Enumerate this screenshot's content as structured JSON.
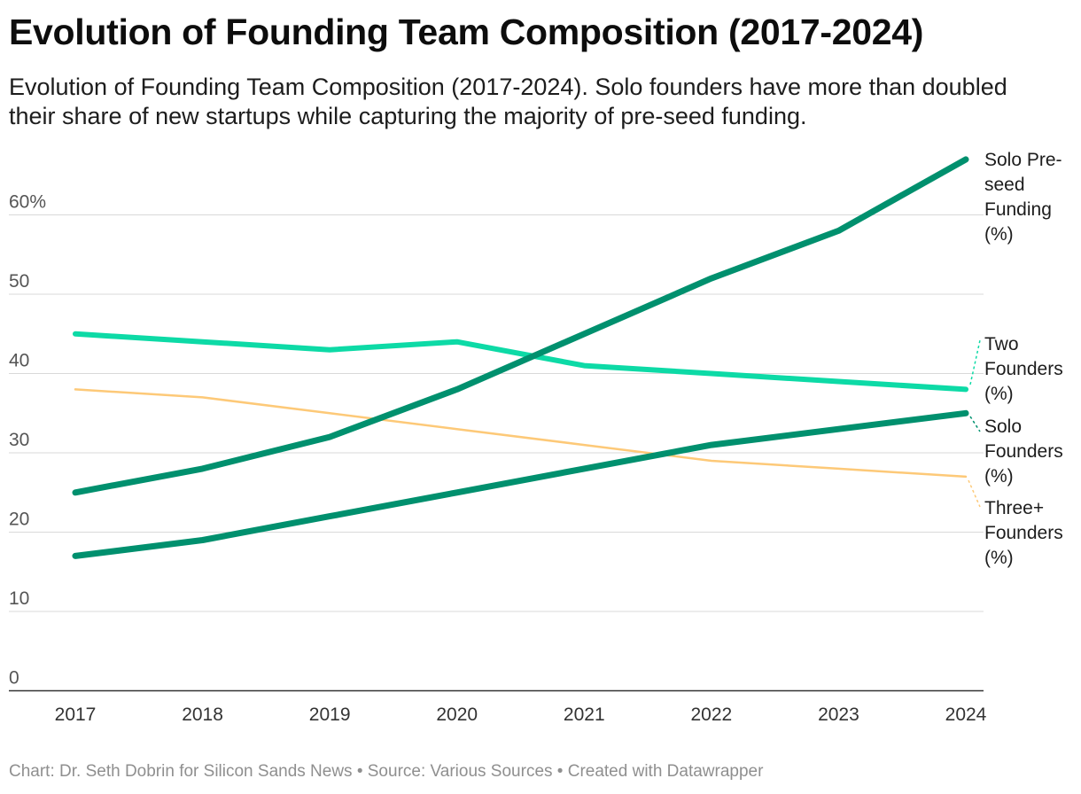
{
  "title": "Evolution of Founding Team Composition (2017-2024)",
  "subtitle": "Evolution of Founding Team Composition (2017-2024). Solo founders have more than doubled their share of new startups while capturing the majority of pre-seed funding.",
  "footer": "Chart: Dr. Seth Dobrin for Silicon Sands News • Source: Various Sources • Created with Datawrapper",
  "chart_data": {
    "type": "line",
    "x": [
      "2017",
      "2018",
      "2019",
      "2020",
      "2021",
      "2022",
      "2023",
      "2024"
    ],
    "ylim": [
      0,
      70
    ],
    "y_ticks": [
      0,
      10,
      20,
      30,
      40,
      50,
      60
    ],
    "y_tick_labels": [
      "0",
      "10",
      "20",
      "30",
      "40",
      "50",
      "60%"
    ],
    "grid": true,
    "legend": "direct labels at line ends (right)",
    "series": [
      {
        "name": "Solo Pre-seed Funding (%)",
        "label_lines": [
          "Solo Pre-",
          "seed",
          "Funding",
          "(%)"
        ],
        "color": "#00906e",
        "values": [
          25,
          28,
          32,
          38,
          45,
          52,
          58,
          67
        ]
      },
      {
        "name": "Two Founders (%)",
        "label_lines": [
          "Two",
          "Founders",
          "(%)"
        ],
        "color": "#0ddaa6",
        "values": [
          45,
          44,
          43,
          44,
          41,
          40,
          39,
          38
        ]
      },
      {
        "name": "Solo Founders (%)",
        "label_lines": [
          "Solo",
          "Founders",
          "(%)"
        ],
        "color": "#00906e",
        "values": [
          17,
          19,
          22,
          25,
          28,
          31,
          33,
          35
        ]
      },
      {
        "name": "Three+ Founders (%)",
        "label_lines": [
          "Three+",
          "Founders",
          "(%)"
        ],
        "color": "#fdc978",
        "values": [
          38,
          37,
          35,
          33,
          31,
          29,
          28,
          27
        ]
      }
    ]
  }
}
